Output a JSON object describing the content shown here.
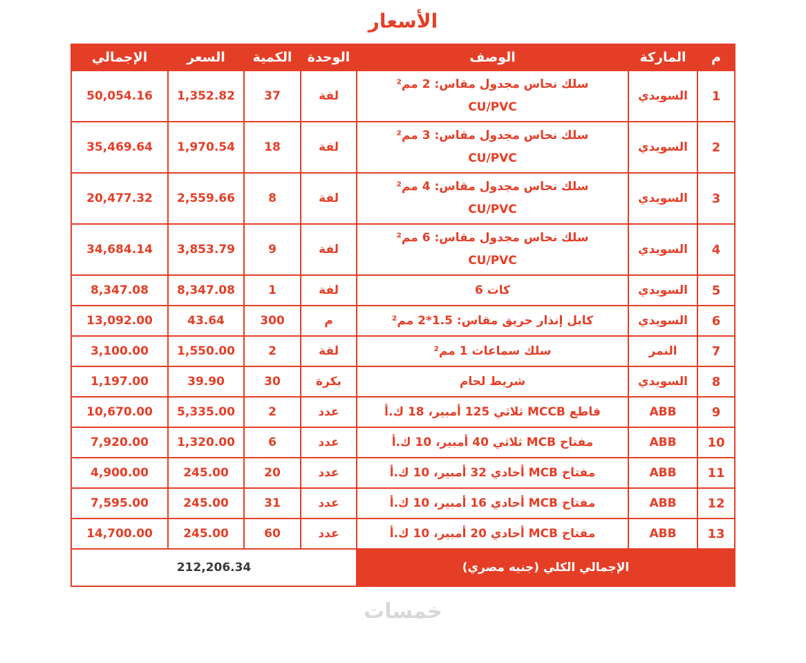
{
  "page": {
    "title": "الأسعار",
    "watermark": "خمسات",
    "accent_color": "#E53E27",
    "footer_total_color": "#3A3A3A",
    "watermark_color": "#D8D8D8"
  },
  "table": {
    "columns": [
      {
        "key": "no",
        "label": "م"
      },
      {
        "key": "brand",
        "label": "الماركة"
      },
      {
        "key": "description",
        "label": "الوصف"
      },
      {
        "key": "unit",
        "label": "الوحدة"
      },
      {
        "key": "qty",
        "label": "الكمية"
      },
      {
        "key": "price",
        "label": "السعر"
      },
      {
        "key": "total",
        "label": "الإجمالي"
      }
    ],
    "rows": [
      {
        "no": "1",
        "brand": "السويدي",
        "description_lines": [
          "سلك نحاس مجدول مقاس: 2 مم²",
          "CU/PVC"
        ],
        "unit": "لفة",
        "qty": "37",
        "price": "1,352.82",
        "total": "50,054.16"
      },
      {
        "no": "2",
        "brand": "السويدي",
        "description_lines": [
          "سلك نحاس مجدول مقاس: 3 مم²",
          "CU/PVC"
        ],
        "unit": "لفة",
        "qty": "18",
        "price": "1,970.54",
        "total": "35,469.64"
      },
      {
        "no": "3",
        "brand": "السويدي",
        "description_lines": [
          "سلك نحاس مجدول مقاس: 4 مم²",
          "CU/PVC"
        ],
        "unit": "لفة",
        "qty": "8",
        "price": "2,559.66",
        "total": "20,477.32"
      },
      {
        "no": "4",
        "brand": "السويدي",
        "description_lines": [
          "سلك نحاس مجدول مقاس: 6 مم²",
          "CU/PVC"
        ],
        "unit": "لفة",
        "qty": "9",
        "price": "3,853.79",
        "total": "34,684.14"
      },
      {
        "no": "5",
        "brand": "السويدي",
        "description_lines": [
          "كات 6"
        ],
        "unit": "لفة",
        "qty": "1",
        "price": "8,347.08",
        "total": "8,347.08"
      },
      {
        "no": "6",
        "brand": "السويدي",
        "description_lines": [
          "كابل إنذار حريق مقاس: 1.5*2 مم²"
        ],
        "unit": "م",
        "qty": "300",
        "price": "43.64",
        "total": "13,092.00"
      },
      {
        "no": "7",
        "brand": "النمر",
        "description_lines": [
          "سلك سماعات 1 مم²"
        ],
        "unit": "لفة",
        "qty": "2",
        "price": "1,550.00",
        "total": "3,100.00"
      },
      {
        "no": "8",
        "brand": "السويدي",
        "description_lines": [
          "شريط لحام"
        ],
        "unit": "بكرة",
        "qty": "30",
        "price": "39.90",
        "total": "1,197.00"
      },
      {
        "no": "9",
        "brand": "ABB",
        "description_lines": [
          "قاطع MCCB ثلاثي 125 أمبير، 18 ك.أ"
        ],
        "unit": "عدد",
        "qty": "2",
        "price": "5,335.00",
        "total": "10,670.00"
      },
      {
        "no": "10",
        "brand": "ABB",
        "description_lines": [
          "مفتاح MCB ثلاثي 40 أمبير، 10 ك.أ"
        ],
        "unit": "عدد",
        "qty": "6",
        "price": "1,320.00",
        "total": "7,920.00"
      },
      {
        "no": "11",
        "brand": "ABB",
        "description_lines": [
          "مفتاح MCB أحادي 32 أمبير، 10 ك.أ"
        ],
        "unit": "عدد",
        "qty": "20",
        "price": "245.00",
        "total": "4,900.00"
      },
      {
        "no": "12",
        "brand": "ABB",
        "description_lines": [
          "مفتاح MCB أحادي 16 أمبير، 10 ك.أ"
        ],
        "unit": "عدد",
        "qty": "31",
        "price": "245.00",
        "total": "7,595.00"
      },
      {
        "no": "13",
        "brand": "ABB",
        "description_lines": [
          "مفتاح MCB أحادي 20 أمبير، 10 ك.أ"
        ],
        "unit": "عدد",
        "qty": "60",
        "price": "245.00",
        "total": "14,700.00"
      }
    ],
    "footer": {
      "label": "الإجمالي الكلي (جنيه مصري)",
      "total": "212,206.34"
    }
  }
}
